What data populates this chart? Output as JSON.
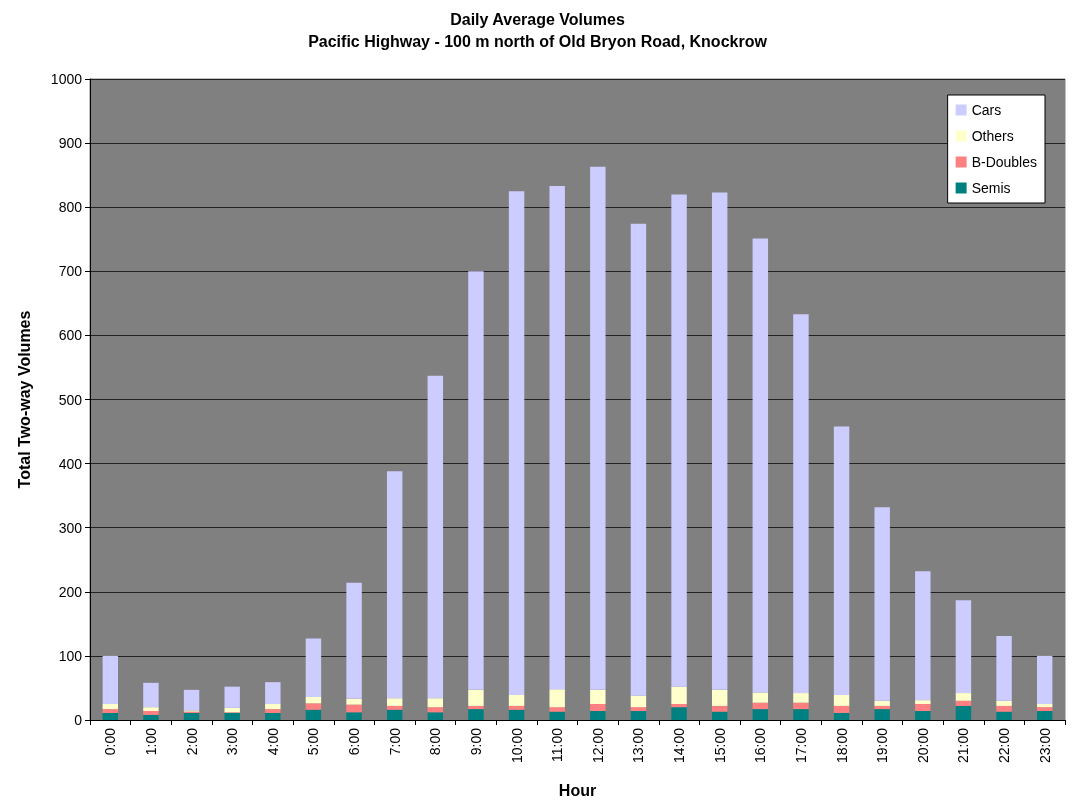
{
  "chart_data": {
    "type": "bar",
    "title": "Daily Average Volumes",
    "subtitle": "Pacific Highway - 100 m north of Old Bryon Road, Knockrow",
    "xlabel": "Hour",
    "ylabel": "Total Two-way Volumes",
    "categories": [
      "0:00",
      "1:00",
      "2:00",
      "3:00",
      "4:00",
      "5:00",
      "6:00",
      "7:00",
      "8:00",
      "9:00",
      "10:00",
      "11:00",
      "12:00",
      "13:00",
      "14:00",
      "15:00",
      "16:00",
      "17:00",
      "18:00",
      "19:00",
      "20:00",
      "21:00",
      "22:00",
      "23:00"
    ],
    "stacked": true,
    "ylim": [
      0,
      1000
    ],
    "yticks": [
      0,
      100,
      200,
      300,
      400,
      500,
      600,
      700,
      800,
      900,
      1000
    ],
    "grid": "y",
    "legend": "top right",
    "series": [
      {
        "name": "Semis",
        "color": "#008080",
        "values": [
          11,
          8,
          11,
          11,
          11,
          16,
          12,
          16,
          12,
          17,
          16,
          13,
          14,
          14,
          20,
          13,
          17,
          17,
          11,
          17,
          14,
          22,
          13,
          14
        ]
      },
      {
        "name": "B-Doubles",
        "color": "#ff8080",
        "values": [
          6,
          6,
          2,
          1,
          6,
          10,
          12,
          6,
          8,
          5,
          6,
          7,
          11,
          6,
          5,
          9,
          10,
          10,
          11,
          5,
          11,
          8,
          9,
          6
        ]
      },
      {
        "name": "Others",
        "color": "#ffffcc",
        "values": [
          8,
          6,
          2,
          7,
          8,
          10,
          9,
          12,
          14,
          25,
          17,
          28,
          22,
          18,
          27,
          25,
          16,
          15,
          17,
          8,
          6,
          12,
          8,
          5
        ]
      },
      {
        "name": "Cars",
        "color": "#ccccff",
        "values": [
          75,
          38,
          32,
          33,
          34,
          91,
          181,
          354,
          503,
          653,
          786,
          785,
          816,
          736,
          768,
          776,
          708,
          591,
          419,
          302,
          201,
          145,
          101,
          75
        ]
      }
    ]
  }
}
